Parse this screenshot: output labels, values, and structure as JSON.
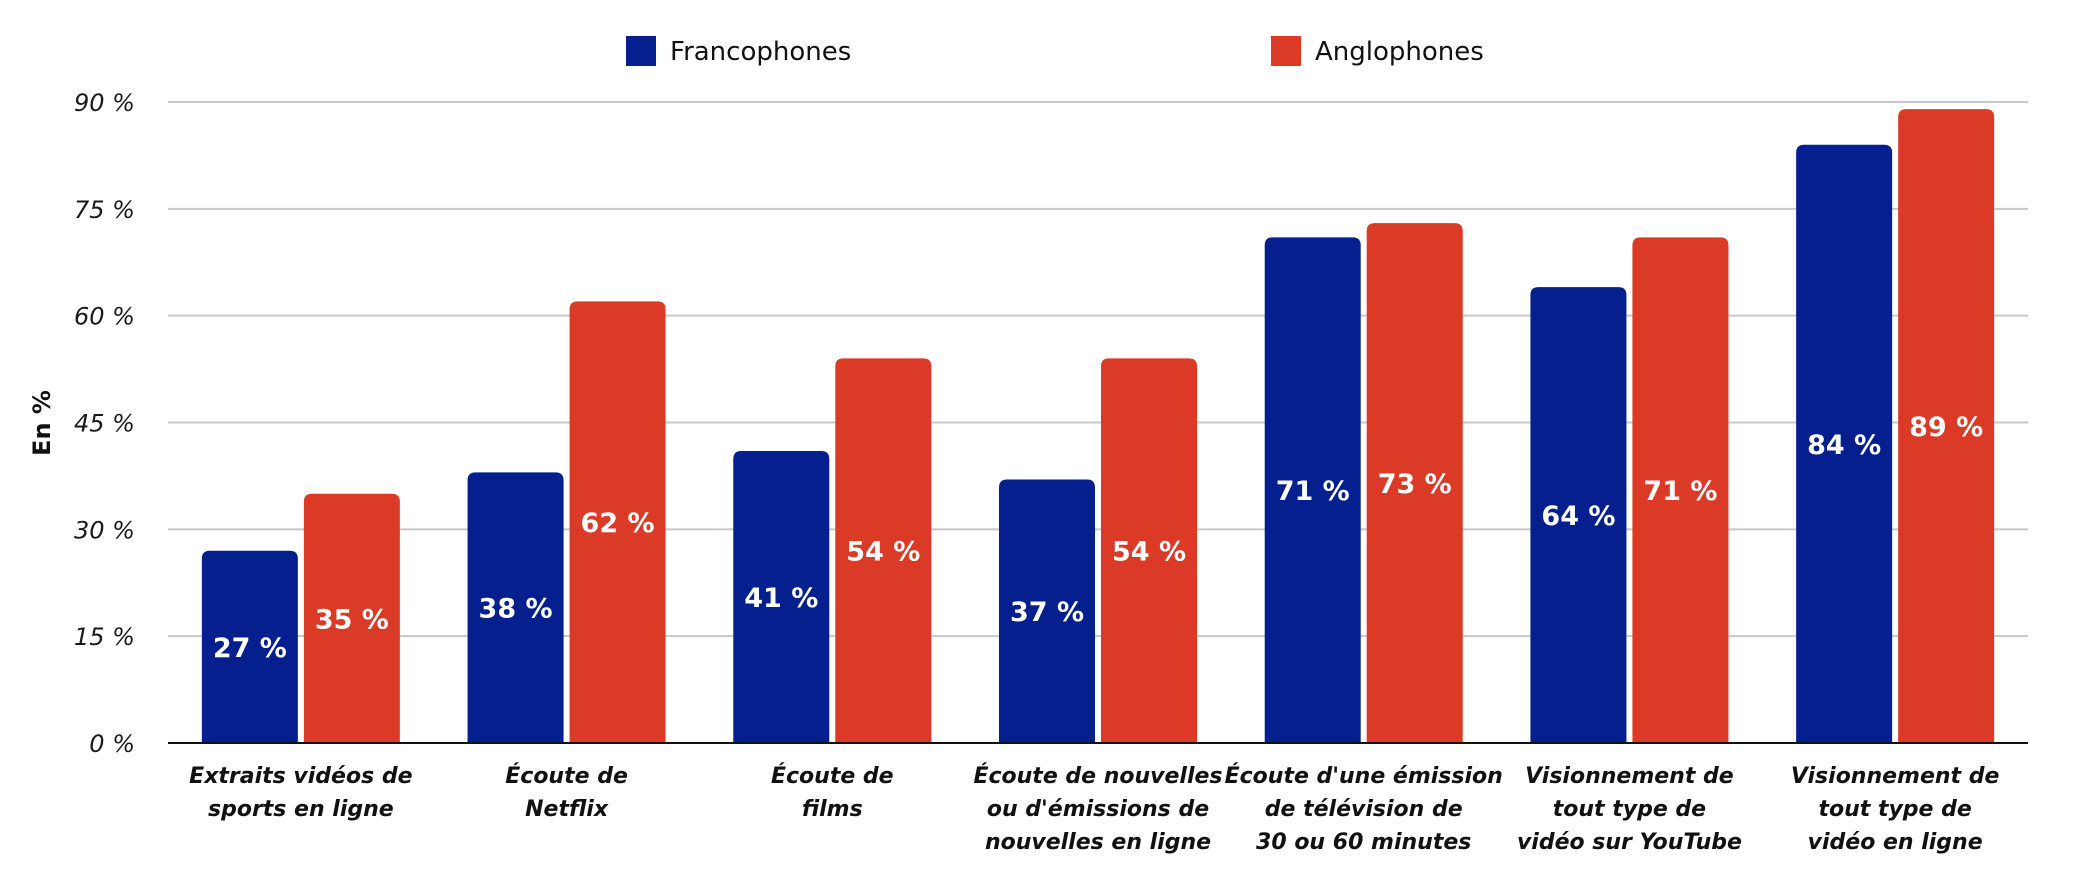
{
  "chart_data": {
    "type": "bar",
    "ylabel": "En %",
    "ylim": [
      0,
      90
    ],
    "yticks": [
      0,
      15,
      30,
      45,
      60,
      75,
      90
    ],
    "ytick_labels": [
      "0 %",
      "15 %",
      "30 %",
      "45 %",
      "60 %",
      "75 %",
      "90 %"
    ],
    "grid": true,
    "legend_position": "top",
    "categories": [
      [
        "Extraits vidéos de",
        "sports en ligne"
      ],
      [
        "Écoute de",
        "Netflix"
      ],
      [
        "Écoute de",
        "films"
      ],
      [
        "Écoute de nouvelles",
        "ou d'émissions de",
        "nouvelles en ligne"
      ],
      [
        "Écoute d'une émission",
        "de télévision de",
        "30 ou 60 minutes"
      ],
      [
        "Visionnement de",
        "tout type de",
        "vidéo sur YouTube"
      ],
      [
        "Visionnement de",
        "tout type de",
        "vidéo en ligne"
      ]
    ],
    "series": [
      {
        "name": "Francophones",
        "color": "#061f8f",
        "values": [
          27,
          38,
          41,
          37,
          71,
          64,
          84
        ],
        "labels": [
          "27 %",
          "38 %",
          "41 %",
          "37 %",
          "71 %",
          "64 %",
          "84 %"
        ]
      },
      {
        "name": "Anglophones",
        "color": "#db3a27",
        "values": [
          35,
          62,
          54,
          54,
          73,
          71,
          89
        ],
        "labels": [
          "35 %",
          "62 %",
          "54 %",
          "54 %",
          "73 %",
          "71 %",
          "89 %"
        ]
      }
    ]
  }
}
